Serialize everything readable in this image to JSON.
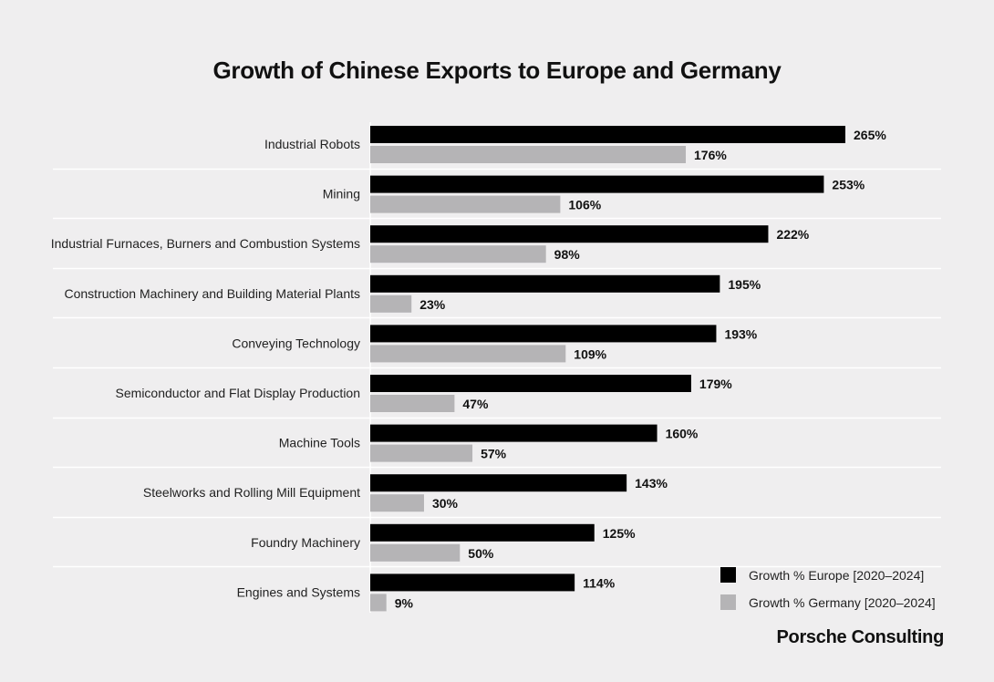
{
  "chart_data": {
    "type": "bar",
    "orientation": "horizontal",
    "title": "Growth of Chinese Exports to Europe and Germany",
    "categories": [
      "Industrial Robots",
      "Mining",
      "Industrial Furnaces, Burners and Combustion Systems",
      "Construction Machinery and Building Material Plants",
      "Conveying Technology",
      "Semiconductor and Flat Display Production",
      "Machine Tools",
      "Steelworks and Rolling Mill Equipment",
      "Foundry Machinery",
      "Engines and Systems"
    ],
    "series": [
      {
        "name": "Growth % Europe [2020–2024]",
        "color": "#000000",
        "values": [
          265,
          253,
          222,
          195,
          193,
          179,
          160,
          143,
          125,
          114
        ]
      },
      {
        "name": "Growth % Germany [2020–2024]",
        "color": "#b5b4b6",
        "values": [
          176,
          106,
          98,
          23,
          109,
          47,
          57,
          30,
          50,
          9
        ]
      }
    ],
    "value_suffix": "%",
    "xlim": [
      0,
      265
    ],
    "grid": false,
    "legend_position": "bottom-right"
  },
  "brand": "Porsche Consulting"
}
